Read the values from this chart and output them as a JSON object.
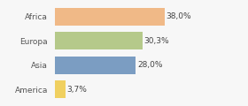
{
  "categories": [
    "Africa",
    "Europa",
    "Asia",
    "America"
  ],
  "values": [
    38.0,
    30.3,
    28.0,
    3.7
  ],
  "labels": [
    "38,0%",
    "30,3%",
    "28,0%",
    "3,7%"
  ],
  "bar_colors": [
    "#f0b987",
    "#b5c98a",
    "#7b9dc2",
    "#f0d060"
  ],
  "background_color": "#f7f7f7",
  "xlim": [
    0,
    48
  ],
  "label_fontsize": 6.5,
  "tick_fontsize": 6.5,
  "bar_height": 0.72
}
